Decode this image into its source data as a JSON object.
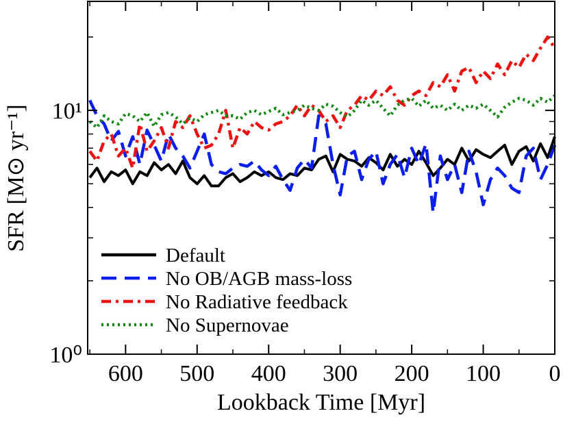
{
  "chart_data": {
    "type": "line",
    "xlabel": "Lookback Time  [Myr]",
    "ylabel": "SFR  [M⊙ yr⁻¹]",
    "x": [
      650,
      640,
      630,
      620,
      610,
      600,
      590,
      580,
      570,
      560,
      550,
      540,
      530,
      520,
      510,
      500,
      490,
      480,
      470,
      460,
      450,
      440,
      430,
      420,
      410,
      400,
      390,
      380,
      370,
      360,
      350,
      340,
      330,
      320,
      310,
      300,
      290,
      280,
      270,
      260,
      250,
      240,
      230,
      220,
      210,
      200,
      190,
      180,
      170,
      160,
      150,
      140,
      130,
      120,
      110,
      100,
      90,
      80,
      70,
      60,
      50,
      40,
      30,
      20,
      10,
      0
    ],
    "xlim": [
      653,
      0
    ],
    "xticks": [
      600,
      500,
      400,
      300,
      200,
      100,
      0
    ],
    "xminor": [
      650,
      550,
      450,
      350,
      250,
      150,
      50
    ],
    "ylim": [
      1,
      28
    ],
    "log_y": true,
    "yticks": [
      {
        "value": 1,
        "label": "10⁰"
      },
      {
        "value": 10,
        "label": "10¹"
      }
    ],
    "yminor": [
      2,
      3,
      4,
      5,
      6,
      7,
      8,
      9,
      20
    ],
    "legend": "lower left",
    "series": [
      {
        "name": "Default",
        "color": "#000000",
        "linestyle": "solid",
        "values": [
          5.3,
          5.8,
          5.1,
          5.6,
          5.4,
          5.7,
          5.0,
          5.6,
          5.4,
          6.1,
          5.7,
          6.0,
          5.5,
          6.2,
          5.3,
          5.0,
          5.4,
          4.9,
          4.9,
          5.3,
          5.5,
          5.1,
          5.3,
          5.6,
          5.4,
          5.6,
          5.3,
          5.2,
          5.5,
          5.4,
          5.8,
          5.7,
          6.3,
          6.5,
          5.6,
          6.6,
          6.3,
          6.2,
          5.9,
          6.4,
          6.1,
          5.7,
          6.6,
          5.9,
          6.3,
          6.0,
          6.8,
          6.1,
          5.4,
          5.8,
          6.3,
          6.0,
          7.0,
          6.2,
          6.9,
          6.6,
          6.4,
          6.8,
          7.2,
          6.0,
          6.8,
          7.1,
          6.2,
          7.3,
          6.4,
          7.8
        ]
      },
      {
        "name": "No OB/AGB mass-loss",
        "color": "#0a1eef",
        "linestyle": "dashed",
        "values": [
          11.0,
          9.5,
          8.8,
          7.5,
          8.2,
          6.5,
          7.8,
          6.0,
          8.3,
          7.2,
          6.2,
          8.0,
          7.0,
          6.5,
          5.8,
          6.8,
          8.0,
          6.0,
          5.6,
          5.5,
          5.8,
          6.0,
          5.9,
          6.2,
          5.7,
          5.4,
          5.9,
          5.2,
          4.7,
          5.8,
          6.3,
          5.8,
          9.5,
          8.8,
          6.0,
          4.5,
          6.5,
          6.8,
          5.2,
          6.3,
          6.8,
          5.0,
          6.0,
          6.6,
          5.3,
          7.0,
          6.0,
          7.3,
          3.8,
          6.5,
          5.2,
          6.0,
          4.6,
          6.8,
          5.6,
          4.1,
          5.2,
          5.8,
          5.4,
          4.8,
          4.6,
          6.5,
          7.0,
          5.2,
          6.0,
          7.2
        ]
      },
      {
        "name": "No Radiative feedback",
        "color": "#ee1111",
        "linestyle": "dashdot",
        "values": [
          6.8,
          6.2,
          7.5,
          8.0,
          6.5,
          7.0,
          5.8,
          8.8,
          6.8,
          7.5,
          8.5,
          7.0,
          9.0,
          8.5,
          9.5,
          8.0,
          7.0,
          7.2,
          8.0,
          10.0,
          7.0,
          8.5,
          8.0,
          9.0,
          8.5,
          8.3,
          8.8,
          9.0,
          9.5,
          10.5,
          9.5,
          10.5,
          10.0,
          9.0,
          9.5,
          8.5,
          10.0,
          10.5,
          11.5,
          11.0,
          12.0,
          11.5,
          12.5,
          11.0,
          10.5,
          11.5,
          12.0,
          11.5,
          13.0,
          12.5,
          14.0,
          12.0,
          14.5,
          15.0,
          13.0,
          14.5,
          13.5,
          15.5,
          14.0,
          16.0,
          15.0,
          17.0,
          16.0,
          18.0,
          20.0,
          18.0
        ]
      },
      {
        "name": "No Supernovae",
        "color": "#118811",
        "linestyle": "dotted",
        "values": [
          9.0,
          8.5,
          9.5,
          9.0,
          8.8,
          9.7,
          9.5,
          9.0,
          9.8,
          8.6,
          9.6,
          9.8,
          9.4,
          8.8,
          9.3,
          9.0,
          9.6,
          9.8,
          10.0,
          9.5,
          9.5,
          9.2,
          9.8,
          10.0,
          9.6,
          9.9,
          10.2,
          9.6,
          9.8,
          10.0,
          10.5,
          10.2,
          10.0,
          10.6,
          10.4,
          9.8,
          9.4,
          10.0,
          11.0,
          10.5,
          11.0,
          10.2,
          9.5,
          10.5,
          11.0,
          11.2,
          10.4,
          11.0,
          10.2,
          10.5,
          10.0,
          10.6,
          10.0,
          10.5,
          10.2,
          10.6,
          10.0,
          9.4,
          10.3,
          10.8,
          11.2,
          11.0,
          10.5,
          11.2,
          10.8,
          11.5
        ]
      }
    ]
  }
}
